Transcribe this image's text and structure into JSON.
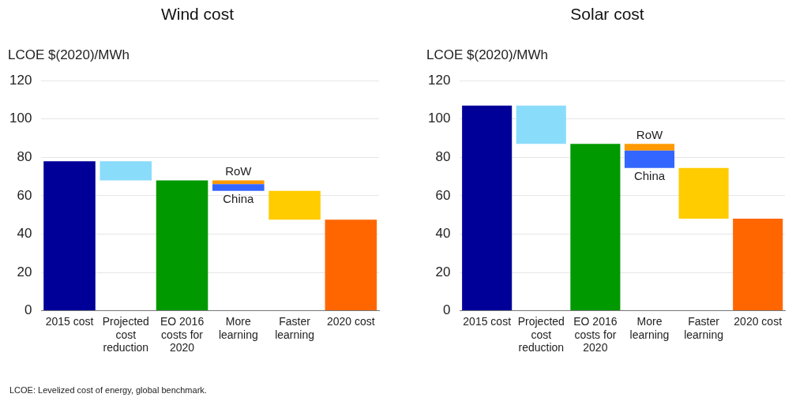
{
  "chart_data": [
    {
      "type": "bar",
      "title": "Wind cost",
      "ylabel": "LCOE $(2020)/MWh",
      "categories": [
        "2015 cost",
        "Projected cost reduction",
        "EO 2016 costs for 2020",
        "More learning",
        "Faster learning",
        "2020 cost"
      ],
      "series": [
        {
          "colors": [
            "#000099",
            "#8adcfb",
            "#009900",
            null,
            "#ffcc00",
            "#ff6600"
          ],
          "values": [
            78,
            10,
            68,
            null,
            15,
            47.5
          ],
          "base": [
            0,
            68,
            0,
            null,
            47.5,
            0
          ]
        },
        {
          "name": "China",
          "color": "#3366ff",
          "values": [
            null,
            null,
            null,
            3.5,
            null,
            null
          ],
          "base": [
            null,
            null,
            null,
            62.5,
            null,
            null
          ]
        },
        {
          "name": "RoW",
          "color": "#ff9900",
          "values": [
            null,
            null,
            null,
            2,
            null,
            null
          ],
          "base": [
            null,
            null,
            null,
            66,
            null,
            null
          ]
        }
      ],
      "ylim": [
        0,
        120
      ],
      "yticks": [
        0,
        20,
        40,
        60,
        80,
        100,
        120
      ],
      "grid": "y",
      "annotations": [
        "LCOE: Levelized cost of energy, global benchmark."
      ]
    },
    {
      "type": "bar",
      "title": "Solar cost",
      "ylabel": "LCOE $(2020)/MWh",
      "categories": [
        "2015 cost",
        "Projected cost reduction",
        "EO 2016 costs for 2020",
        "More learning",
        "Faster learning",
        "2020 cost"
      ],
      "series": [
        {
          "colors": [
            "#000099",
            "#8adcfb",
            "#009900",
            null,
            "#ffcc00",
            "#ff6600"
          ],
          "values": [
            107,
            20,
            87,
            null,
            26.5,
            48
          ],
          "base": [
            0,
            87,
            0,
            null,
            48,
            0
          ]
        },
        {
          "name": "China",
          "color": "#3366ff",
          "values": [
            null,
            null,
            null,
            9,
            null,
            null
          ],
          "base": [
            null,
            null,
            null,
            74.5,
            null,
            null
          ]
        },
        {
          "name": "RoW",
          "color": "#ff9900",
          "values": [
            null,
            null,
            null,
            3.5,
            null,
            null
          ],
          "base": [
            null,
            null,
            null,
            83.5,
            null,
            null
          ]
        }
      ],
      "ylim": [
        0,
        120
      ],
      "yticks": [
        0,
        20,
        40,
        60,
        80,
        100,
        120
      ],
      "grid": "y"
    }
  ]
}
